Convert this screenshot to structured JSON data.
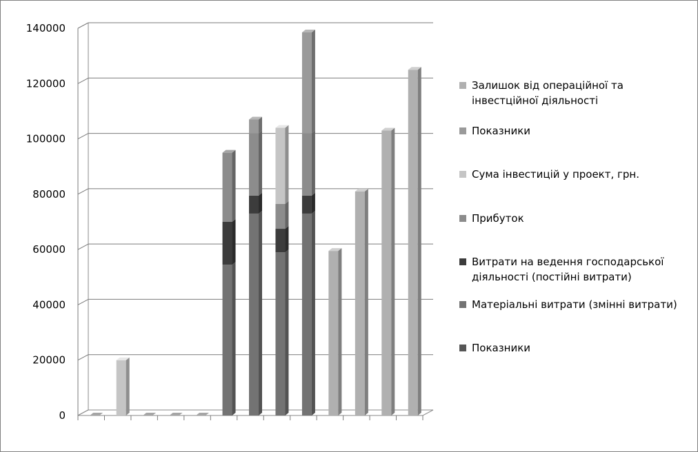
{
  "chart_data": {
    "type": "bar",
    "stacked": true,
    "three_d": true,
    "ylim": [
      0,
      140000
    ],
    "yticks": [
      0,
      20000,
      40000,
      60000,
      80000,
      100000,
      120000,
      140000
    ],
    "ytick_labels": [
      "0",
      "20000",
      "40000",
      "60000",
      "80000",
      "100000",
      "120000",
      "140000"
    ],
    "grid": true,
    "legend_position": "right",
    "categories": [
      "",
      "",
      "",
      "",
      "",
      "",
      "",
      "",
      "",
      "",
      "",
      "",
      ""
    ],
    "series": [
      {
        "name": "Показники",
        "color": "#565656",
        "values": [
          0,
          0,
          0,
          0,
          0,
          0,
          0,
          0,
          0,
          0,
          0,
          0,
          0
        ]
      },
      {
        "name": "Матеріальні витрати (змінні витрати)",
        "color": "#737373",
        "values": [
          0,
          0,
          0,
          0,
          0,
          54500,
          73000,
          59000,
          73000,
          0,
          0,
          0,
          0
        ]
      },
      {
        "name": "Витрати на ведення господарської діяльності  (постійні витрати)",
        "color": "#3c3c3c",
        "values": [
          0,
          0,
          0,
          0,
          0,
          15500,
          6500,
          8500,
          6500,
          0,
          0,
          0,
          0
        ]
      },
      {
        "name": "Прибуток",
        "color": "#8c8c8c",
        "values": [
          0,
          0,
          0,
          0,
          0,
          25000,
          22500,
          9000,
          22500,
          0,
          0,
          0,
          0
        ]
      },
      {
        "name": "Сума інвестицій у проект, грн.",
        "color": "#c5c5c5",
        "values": [
          0,
          20000,
          0,
          0,
          0,
          0,
          0,
          27500,
          0,
          0,
          0,
          0,
          0
        ]
      },
      {
        "name": "Показники",
        "color": "#9a9a9a",
        "values": [
          0,
          0,
          0,
          0,
          0,
          0,
          5000,
          0,
          36500,
          0,
          0,
          0,
          0
        ]
      },
      {
        "name": "Залишок від операційної та інвестційної діяльності",
        "color": "#b0b0b0",
        "values": [
          0,
          0,
          0,
          0,
          0,
          0,
          0,
          0,
          0,
          59500,
          81000,
          103000,
          125000
        ]
      }
    ]
  },
  "legend": {
    "items": [
      {
        "label": "Залишок від операційної та інвестційної діяльності",
        "color": "#b0b0b0"
      },
      {
        "label": "Показники",
        "color": "#9a9a9a"
      },
      {
        "label": "Сума інвестицій у проект, грн.",
        "color": "#c5c5c5"
      },
      {
        "label": "Прибуток",
        "color": "#8c8c8c"
      },
      {
        "label": "Витрати на ведення господарської діяльності  (постійні витрати)",
        "color": "#3c3c3c"
      },
      {
        "label": "Матеріальні витрати (змінні витрати)",
        "color": "#737373"
      },
      {
        "label": "Показники",
        "color": "#565656"
      }
    ]
  }
}
